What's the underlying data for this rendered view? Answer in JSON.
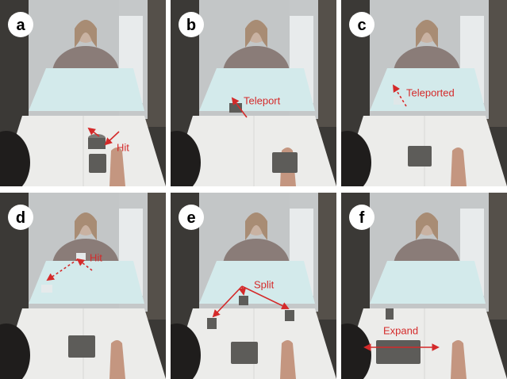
{
  "panels": [
    {
      "label": "a",
      "annotation": "Hit"
    },
    {
      "label": "b",
      "annotation": "Teleport"
    },
    {
      "label": "c",
      "annotation": "Teleported"
    },
    {
      "label": "d",
      "annotation": "Hit"
    },
    {
      "label": "e",
      "annotation": "Split"
    },
    {
      "label": "f",
      "annotation": "Expand"
    }
  ]
}
